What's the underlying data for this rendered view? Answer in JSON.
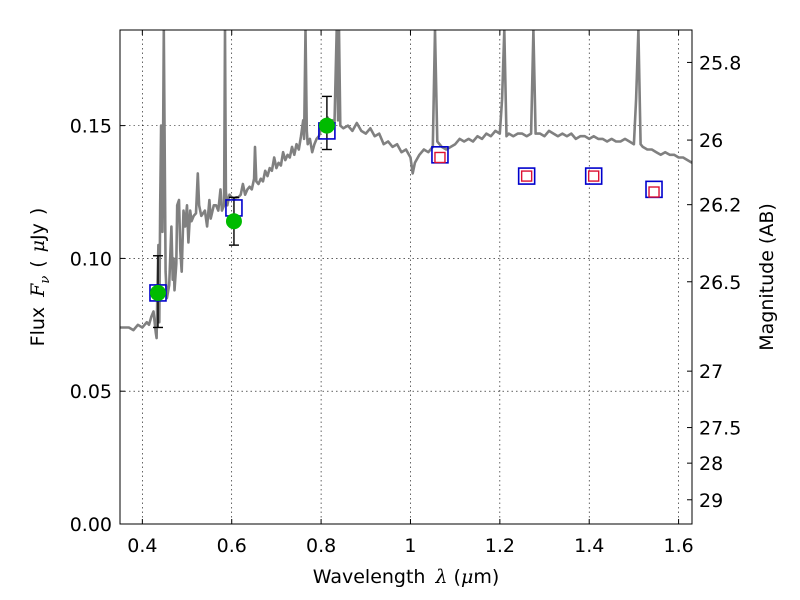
{
  "chart_data": {
    "type": "scatter",
    "title": "",
    "xlabel": {
      "text": "Wavelength",
      "symbol": "λ",
      "unit_open": "(",
      "unit_mu": "μ",
      "unit_rest": "m)"
    },
    "ylabel": {
      "text": "Flux",
      "symbol": "F",
      "sub": "ν",
      "unit_open": "(",
      "unit_mu": "μ",
      "unit_rest": "Jy",
      "unit_close": ")"
    },
    "y2label": "Magnitude (AB)",
    "xlim": [
      0.35,
      1.63
    ],
    "ylim": [
      0.0,
      0.186
    ],
    "grid": true,
    "x_ticks": [
      {
        "value": 0.4,
        "label": "0.4"
      },
      {
        "value": 0.6,
        "label": "0.6"
      },
      {
        "value": 0.8,
        "label": "0.8"
      },
      {
        "value": 1.0,
        "label": "1"
      },
      {
        "value": 1.2,
        "label": "1.2"
      },
      {
        "value": 1.4,
        "label": "1.4"
      },
      {
        "value": 1.6,
        "label": "1.6"
      }
    ],
    "y_ticks": [
      {
        "value": 0.0,
        "label": "0.00"
      },
      {
        "value": 0.05,
        "label": "0.05"
      },
      {
        "value": 0.1,
        "label": "0.10"
      },
      {
        "value": 0.15,
        "label": "0.15"
      }
    ],
    "y2_ticks": [
      {
        "value": 25.8,
        "label": "25.8"
      },
      {
        "value": 26.0,
        "label": "26"
      },
      {
        "value": 26.2,
        "label": "26.2"
      },
      {
        "value": 26.5,
        "label": "26.5"
      },
      {
        "value": 27.0,
        "label": "27"
      },
      {
        "value": 27.5,
        "label": "27.5"
      },
      {
        "value": 28.0,
        "label": "28"
      },
      {
        "value": 29.0,
        "label": "29"
      }
    ],
    "model_spectrum": {
      "color": "#808080",
      "points": [
        [
          0.35,
          0.074
        ],
        [
          0.37,
          0.074
        ],
        [
          0.38,
          0.073
        ],
        [
          0.39,
          0.075
        ],
        [
          0.4,
          0.074
        ],
        [
          0.41,
          0.076
        ],
        [
          0.415,
          0.075
        ],
        [
          0.42,
          0.078
        ],
        [
          0.425,
          0.08
        ],
        [
          0.43,
          0.072
        ],
        [
          0.432,
          0.07
        ],
        [
          0.434,
          0.09
        ],
        [
          0.436,
          0.105
        ],
        [
          0.438,
          0.076
        ],
        [
          0.44,
          0.12
        ],
        [
          0.442,
          0.15
        ],
        [
          0.445,
          0.11
        ],
        [
          0.448,
          0.186
        ],
        [
          0.452,
          0.095
        ],
        [
          0.455,
          0.085
        ],
        [
          0.46,
          0.09
        ],
        [
          0.465,
          0.112
        ],
        [
          0.468,
          0.092
        ],
        [
          0.47,
          0.1
        ],
        [
          0.472,
          0.088
        ],
        [
          0.476,
          0.098
        ],
        [
          0.478,
          0.12
        ],
        [
          0.482,
          0.122
        ],
        [
          0.485,
          0.103
        ],
        [
          0.488,
          0.095
        ],
        [
          0.492,
          0.118
        ],
        [
          0.496,
          0.112
        ],
        [
          0.5,
          0.12
        ],
        [
          0.503,
          0.106
        ],
        [
          0.507,
          0.118
        ],
        [
          0.51,
          0.114
        ],
        [
          0.515,
          0.116
        ],
        [
          0.52,
          0.117
        ],
        [
          0.524,
          0.132
        ],
        [
          0.527,
          0.12
        ],
        [
          0.532,
          0.116
        ],
        [
          0.54,
          0.118
        ],
        [
          0.545,
          0.112
        ],
        [
          0.55,
          0.122
        ],
        [
          0.553,
          0.115
        ],
        [
          0.56,
          0.12
        ],
        [
          0.565,
          0.12
        ],
        [
          0.57,
          0.118
        ],
        [
          0.575,
          0.126
        ],
        [
          0.578,
          0.118
        ],
        [
          0.583,
          0.12
        ],
        [
          0.585,
          0.186
        ],
        [
          0.587,
          0.125
        ],
        [
          0.59,
          0.12
        ],
        [
          0.595,
          0.124
        ],
        [
          0.6,
          0.123
        ],
        [
          0.605,
          0.122
        ],
        [
          0.61,
          0.123
        ],
        [
          0.615,
          0.123
        ],
        [
          0.62,
          0.124
        ],
        [
          0.625,
          0.128
        ],
        [
          0.63,
          0.124
        ],
        [
          0.635,
          0.126
        ],
        [
          0.64,
          0.127
        ],
        [
          0.645,
          0.126
        ],
        [
          0.65,
          0.13
        ],
        [
          0.652,
          0.142
        ],
        [
          0.655,
          0.129
        ],
        [
          0.66,
          0.128
        ],
        [
          0.665,
          0.13
        ],
        [
          0.67,
          0.129
        ],
        [
          0.675,
          0.133
        ],
        [
          0.68,
          0.131
        ],
        [
          0.685,
          0.134
        ],
        [
          0.69,
          0.133
        ],
        [
          0.695,
          0.138
        ],
        [
          0.7,
          0.134
        ],
        [
          0.705,
          0.136
        ],
        [
          0.71,
          0.135
        ],
        [
          0.715,
          0.14
        ],
        [
          0.72,
          0.137
        ],
        [
          0.725,
          0.139
        ],
        [
          0.73,
          0.138
        ],
        [
          0.735,
          0.142
        ],
        [
          0.74,
          0.139
        ],
        [
          0.745,
          0.143
        ],
        [
          0.75,
          0.141
        ],
        [
          0.755,
          0.146
        ],
        [
          0.76,
          0.152
        ],
        [
          0.762,
          0.145
        ],
        [
          0.765,
          0.186
        ],
        [
          0.768,
          0.148
        ],
        [
          0.77,
          0.143
        ],
        [
          0.775,
          0.145
        ],
        [
          0.78,
          0.14
        ],
        [
          0.785,
          0.143
        ],
        [
          0.79,
          0.145
        ],
        [
          0.795,
          0.146
        ],
        [
          0.8,
          0.149
        ],
        [
          0.805,
          0.148
        ],
        [
          0.81,
          0.15
        ],
        [
          0.815,
          0.153
        ],
        [
          0.82,
          0.149
        ],
        [
          0.825,
          0.152
        ],
        [
          0.83,
          0.151
        ],
        [
          0.835,
          0.186
        ],
        [
          0.838,
          0.152
        ],
        [
          0.84,
          0.186
        ],
        [
          0.843,
          0.15
        ],
        [
          0.85,
          0.149
        ],
        [
          0.86,
          0.15
        ],
        [
          0.87,
          0.148
        ],
        [
          0.88,
          0.151
        ],
        [
          0.89,
          0.148
        ],
        [
          0.9,
          0.147
        ],
        [
          0.91,
          0.149
        ],
        [
          0.92,
          0.146
        ],
        [
          0.93,
          0.147
        ],
        [
          0.94,
          0.143
        ],
        [
          0.95,
          0.144
        ],
        [
          0.96,
          0.142
        ],
        [
          0.97,
          0.143
        ],
        [
          0.98,
          0.14
        ],
        [
          0.99,
          0.141
        ],
        [
          1.0,
          0.138
        ],
        [
          1.005,
          0.132
        ],
        [
          1.01,
          0.136
        ],
        [
          1.02,
          0.139
        ],
        [
          1.03,
          0.141
        ],
        [
          1.04,
          0.14
        ],
        [
          1.05,
          0.142
        ],
        [
          1.055,
          0.186
        ],
        [
          1.06,
          0.144
        ],
        [
          1.07,
          0.142
        ],
        [
          1.08,
          0.141
        ],
        [
          1.09,
          0.142
        ],
        [
          1.1,
          0.143
        ],
        [
          1.11,
          0.145
        ],
        [
          1.12,
          0.144
        ],
        [
          1.13,
          0.145
        ],
        [
          1.14,
          0.144
        ],
        [
          1.15,
          0.146
        ],
        [
          1.16,
          0.145
        ],
        [
          1.17,
          0.147
        ],
        [
          1.18,
          0.146
        ],
        [
          1.19,
          0.148
        ],
        [
          1.2,
          0.147
        ],
        [
          1.205,
          0.16
        ],
        [
          1.21,
          0.186
        ],
        [
          1.215,
          0.146
        ],
        [
          1.22,
          0.147
        ],
        [
          1.23,
          0.146
        ],
        [
          1.24,
          0.147
        ],
        [
          1.25,
          0.147
        ],
        [
          1.26,
          0.146
        ],
        [
          1.27,
          0.147
        ],
        [
          1.275,
          0.186
        ],
        [
          1.28,
          0.147
        ],
        [
          1.29,
          0.147
        ],
        [
          1.3,
          0.146
        ],
        [
          1.31,
          0.148
        ],
        [
          1.32,
          0.147
        ],
        [
          1.33,
          0.146
        ],
        [
          1.34,
          0.147
        ],
        [
          1.35,
          0.146
        ],
        [
          1.36,
          0.147
        ],
        [
          1.37,
          0.145
        ],
        [
          1.38,
          0.146
        ],
        [
          1.39,
          0.146
        ],
        [
          1.4,
          0.145
        ],
        [
          1.41,
          0.146
        ],
        [
          1.42,
          0.145
        ],
        [
          1.43,
          0.145
        ],
        [
          1.44,
          0.144
        ],
        [
          1.45,
          0.145
        ],
        [
          1.46,
          0.144
        ],
        [
          1.47,
          0.144
        ],
        [
          1.48,
          0.145
        ],
        [
          1.49,
          0.144
        ],
        [
          1.5,
          0.143
        ],
        [
          1.505,
          0.16
        ],
        [
          1.51,
          0.186
        ],
        [
          1.515,
          0.143
        ],
        [
          1.52,
          0.142
        ],
        [
          1.53,
          0.141
        ],
        [
          1.54,
          0.141
        ],
        [
          1.55,
          0.14
        ],
        [
          1.56,
          0.139
        ],
        [
          1.57,
          0.14
        ],
        [
          1.58,
          0.139
        ],
        [
          1.59,
          0.139
        ],
        [
          1.6,
          0.138
        ],
        [
          1.61,
          0.138
        ],
        [
          1.62,
          0.137
        ],
        [
          1.63,
          0.136
        ]
      ]
    },
    "squares": {
      "color": "#0000cc",
      "points": [
        {
          "x": 0.435,
          "y": 0.087
        },
        {
          "x": 0.605,
          "y": 0.119
        },
        {
          "x": 0.813,
          "y": 0.148
        },
        {
          "x": 1.066,
          "y": 0.139
        },
        {
          "x": 1.26,
          "y": 0.131
        },
        {
          "x": 1.41,
          "y": 0.131
        },
        {
          "x": 1.545,
          "y": 0.126
        }
      ]
    },
    "inner_squares": {
      "color": "#dd1133",
      "points": [
        {
          "x": 1.066,
          "y": 0.138
        },
        {
          "x": 1.26,
          "y": 0.131
        },
        {
          "x": 1.41,
          "y": 0.131
        },
        {
          "x": 1.545,
          "y": 0.125
        }
      ]
    },
    "circles": {
      "color": "#00bb00",
      "points": [
        {
          "x": 0.435,
          "y": 0.087,
          "err_low": 0.074,
          "err_high": 0.101
        },
        {
          "x": 0.605,
          "y": 0.114,
          "err_low": 0.105,
          "err_high": 0.123
        },
        {
          "x": 0.813,
          "y": 0.15,
          "err_low": 0.141,
          "err_high": 0.161
        }
      ]
    }
  }
}
